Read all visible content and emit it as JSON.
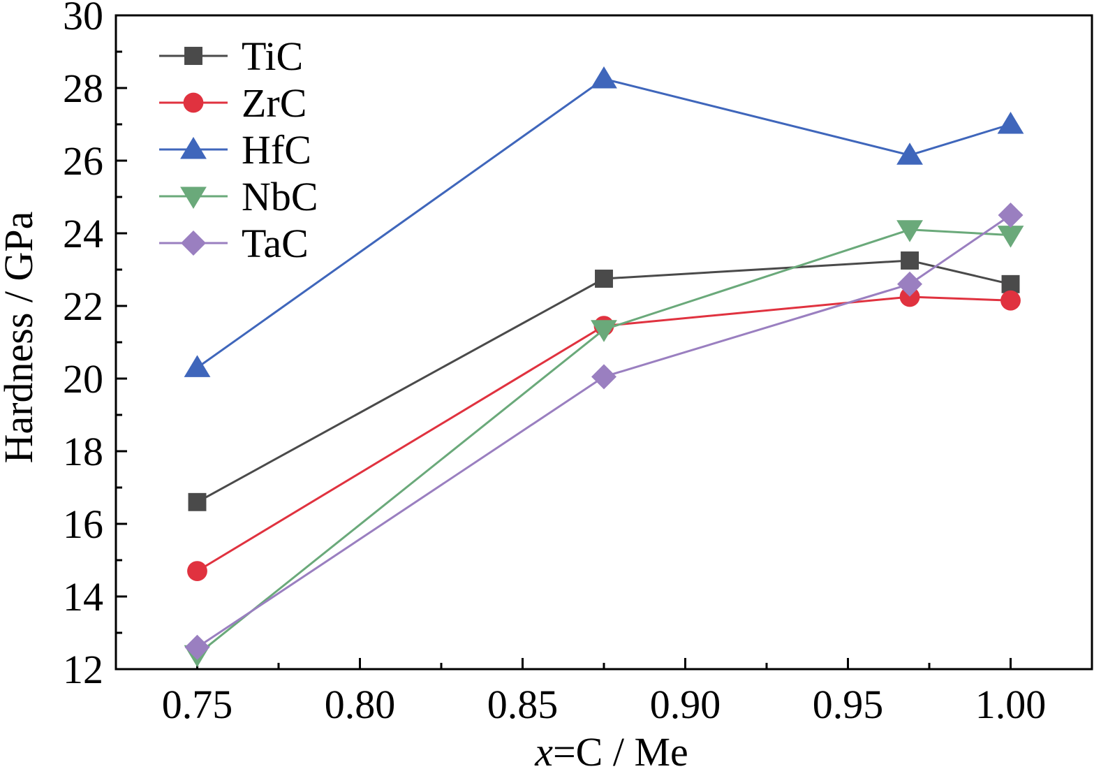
{
  "chart_data": {
    "type": "line",
    "xlabel_prefix": "x",
    "xlabel_rest": "=C / Me",
    "ylabel": "Hardness / GPa",
    "xlim": [
      0.725,
      1.025
    ],
    "ylim": [
      12,
      30
    ],
    "xticks": [
      "0.75",
      "0.80",
      "0.85",
      "0.90",
      "0.95",
      "1.00"
    ],
    "xtick_values": [
      0.75,
      0.8,
      0.85,
      0.9,
      0.95,
      1.0
    ],
    "yticks": [
      "12",
      "14",
      "16",
      "18",
      "20",
      "22",
      "24",
      "26",
      "28",
      "30"
    ],
    "ytick_values": [
      12,
      14,
      16,
      18,
      20,
      22,
      24,
      26,
      28,
      30
    ],
    "grid": false,
    "legend_position": "top-left",
    "x": [
      0.75,
      0.875,
      0.969,
      1.0
    ],
    "series": [
      {
        "name": "TiC",
        "values": [
          16.6,
          22.75,
          23.25,
          22.6
        ],
        "color": "#4a4a4a",
        "marker": "square"
      },
      {
        "name": "ZrC",
        "values": [
          14.7,
          21.45,
          22.25,
          22.15
        ],
        "color": "#e0323f",
        "marker": "circle"
      },
      {
        "name": "HfC",
        "values": [
          20.3,
          28.25,
          26.15,
          27.0
        ],
        "color": "#3f66bb",
        "marker": "triangle-up"
      },
      {
        "name": "NbC",
        "values": [
          12.4,
          21.35,
          24.1,
          23.95
        ],
        "color": "#6aa97a",
        "marker": "triangle-down"
      },
      {
        "name": "TaC",
        "values": [
          12.6,
          20.05,
          22.6,
          24.5
        ],
        "color": "#9a7fc0",
        "marker": "diamond"
      }
    ]
  }
}
